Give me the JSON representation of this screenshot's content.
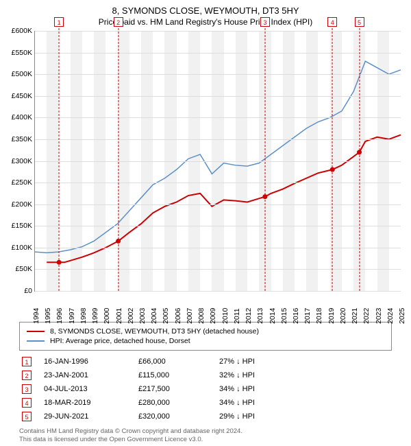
{
  "title": "8, SYMONDS CLOSE, WEYMOUTH, DT3 5HY",
  "subtitle": "Price paid vs. HM Land Registry's House Price Index (HPI)",
  "chart": {
    "type": "line",
    "background_color": "#ffffff",
    "band_color": "#f1f1f1",
    "grid_color": "#dddddd",
    "axis_color": "#888888",
    "text_color": "#000000",
    "x_years": [
      1994,
      1995,
      1996,
      1997,
      1998,
      1999,
      2000,
      2001,
      2002,
      2003,
      2004,
      2005,
      2006,
      2007,
      2008,
      2009,
      2010,
      2011,
      2012,
      2013,
      2014,
      2015,
      2016,
      2017,
      2018,
      2019,
      2020,
      2021,
      2022,
      2023,
      2024,
      2025
    ],
    "ylim": [
      0,
      600000
    ],
    "ytick_step": 50000,
    "ytick_labels": [
      "£0",
      "£50K",
      "£100K",
      "£150K",
      "£200K",
      "£250K",
      "£300K",
      "£350K",
      "£400K",
      "£450K",
      "£500K",
      "£550K",
      "£600K"
    ],
    "series": [
      {
        "name": "price_paid",
        "label": "8, SYMONDS CLOSE, WEYMOUTH, DT3 5HY (detached house)",
        "color": "#cc0000",
        "line_width": 2,
        "points": [
          [
            1995.0,
            66000
          ],
          [
            1996.04,
            66000
          ],
          [
            1996.5,
            66000
          ],
          [
            1997,
            70000
          ],
          [
            1998,
            78000
          ],
          [
            1999,
            88000
          ],
          [
            2000,
            100000
          ],
          [
            2001.06,
            115000
          ],
          [
            2002,
            135000
          ],
          [
            2003,
            155000
          ],
          [
            2004,
            180000
          ],
          [
            2005,
            195000
          ],
          [
            2006,
            205000
          ],
          [
            2007,
            220000
          ],
          [
            2008,
            225000
          ],
          [
            2009,
            195000
          ],
          [
            2010,
            210000
          ],
          [
            2011,
            208000
          ],
          [
            2012,
            205000
          ],
          [
            2013.5,
            217500
          ],
          [
            2014,
            225000
          ],
          [
            2015,
            235000
          ],
          [
            2016,
            248000
          ],
          [
            2017,
            260000
          ],
          [
            2018,
            272000
          ],
          [
            2019.21,
            280000
          ],
          [
            2020,
            290000
          ],
          [
            2021,
            310000
          ],
          [
            2021.49,
            320000
          ],
          [
            2022,
            345000
          ],
          [
            2023,
            355000
          ],
          [
            2024,
            350000
          ],
          [
            2025,
            360000
          ]
        ],
        "sale_dots": [
          [
            1996.04,
            66000
          ],
          [
            2001.06,
            115000
          ],
          [
            2013.5,
            217500
          ],
          [
            2019.21,
            280000
          ],
          [
            2021.49,
            320000
          ]
        ]
      },
      {
        "name": "hpi",
        "label": "HPI: Average price, detached house, Dorset",
        "color": "#5b8fc7",
        "line_width": 1.5,
        "points": [
          [
            1994,
            90000
          ],
          [
            1995,
            88000
          ],
          [
            1996,
            90000
          ],
          [
            1997,
            95000
          ],
          [
            1998,
            102000
          ],
          [
            1999,
            115000
          ],
          [
            2000,
            135000
          ],
          [
            2001,
            155000
          ],
          [
            2002,
            185000
          ],
          [
            2003,
            215000
          ],
          [
            2004,
            245000
          ],
          [
            2005,
            260000
          ],
          [
            2006,
            280000
          ],
          [
            2007,
            305000
          ],
          [
            2008,
            315000
          ],
          [
            2009,
            270000
          ],
          [
            2010,
            295000
          ],
          [
            2011,
            290000
          ],
          [
            2012,
            288000
          ],
          [
            2013,
            295000
          ],
          [
            2014,
            315000
          ],
          [
            2015,
            335000
          ],
          [
            2016,
            355000
          ],
          [
            2017,
            375000
          ],
          [
            2018,
            390000
          ],
          [
            2019,
            400000
          ],
          [
            2020,
            415000
          ],
          [
            2021,
            460000
          ],
          [
            2022,
            530000
          ],
          [
            2023,
            515000
          ],
          [
            2024,
            500000
          ],
          [
            2025,
            510000
          ]
        ]
      }
    ],
    "markers": [
      {
        "n": "1",
        "year": 1996.04
      },
      {
        "n": "2",
        "year": 2001.06
      },
      {
        "n": "3",
        "year": 2013.5
      },
      {
        "n": "4",
        "year": 2019.21
      },
      {
        "n": "5",
        "year": 2021.49
      }
    ]
  },
  "legend": [
    {
      "color": "#cc0000",
      "label": "8, SYMONDS CLOSE, WEYMOUTH, DT3 5HY (detached house)"
    },
    {
      "color": "#5b8fc7",
      "label": "HPI: Average price, detached house, Dorset"
    }
  ],
  "sales": [
    {
      "n": "1",
      "date": "16-JAN-1996",
      "price": "£66,000",
      "pct": "27% ↓ HPI"
    },
    {
      "n": "2",
      "date": "23-JAN-2001",
      "price": "£115,000",
      "pct": "32% ↓ HPI"
    },
    {
      "n": "3",
      "date": "04-JUL-2013",
      "price": "£217,500",
      "pct": "34% ↓ HPI"
    },
    {
      "n": "4",
      "date": "18-MAR-2019",
      "price": "£280,000",
      "pct": "34% ↓ HPI"
    },
    {
      "n": "5",
      "date": "29-JUN-2021",
      "price": "£320,000",
      "pct": "29% ↓ HPI"
    }
  ],
  "footer_line1": "Contains HM Land Registry data © Crown copyright and database right 2024.",
  "footer_line2": "This data is licensed under the Open Government Licence v3.0."
}
